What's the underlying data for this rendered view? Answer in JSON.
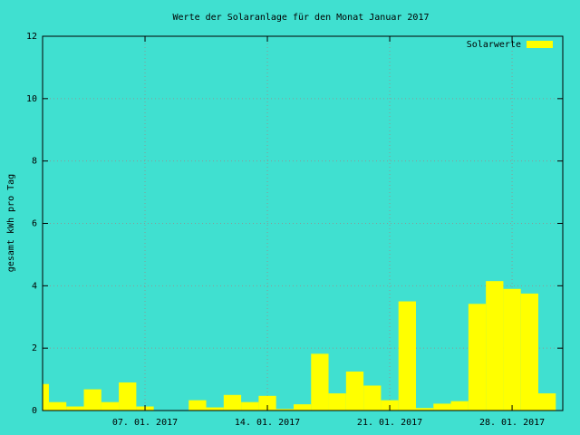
{
  "chart_data": {
    "type": "bar",
    "title": "Werte der Solaranlage für den Monat Januar 2017",
    "y_label": "gesamt kWh pro Tag",
    "x": [
      1,
      2,
      3,
      4,
      5,
      6,
      7,
      8,
      9,
      10,
      11,
      12,
      13,
      14,
      15,
      16,
      17,
      18,
      19,
      20,
      21,
      22,
      23,
      24,
      25,
      26,
      27,
      28,
      29,
      30
    ],
    "series": [
      {
        "name": "Solarwerte",
        "color": "#ffff00",
        "values": [
          0.85,
          0.27,
          0.13,
          0.68,
          0.27,
          0.9,
          0.13,
          0,
          0,
          0.33,
          0.1,
          0.5,
          0.27,
          0.47,
          0.05,
          0.2,
          1.82,
          0.55,
          1.25,
          0.8,
          0.33,
          3.5,
          0.08,
          0.22,
          0.3,
          3.42,
          4.15,
          3.9,
          3.75,
          0.55
        ]
      }
    ],
    "xlim": [
      1.14,
      30.9
    ],
    "xticks": [
      {
        "value": 7,
        "label": "07. 01. 2017"
      },
      {
        "value": 14,
        "label": "14. 01. 2017"
      },
      {
        "value": 21,
        "label": "21. 01. 2017"
      },
      {
        "value": 28,
        "label": "28. 01. 2017"
      }
    ],
    "ylim": [
      0,
      12
    ],
    "yticks": [
      0,
      2,
      4,
      6,
      8,
      10,
      12
    ],
    "grid": true,
    "legend": "top-right",
    "background": "#40e0d0"
  }
}
